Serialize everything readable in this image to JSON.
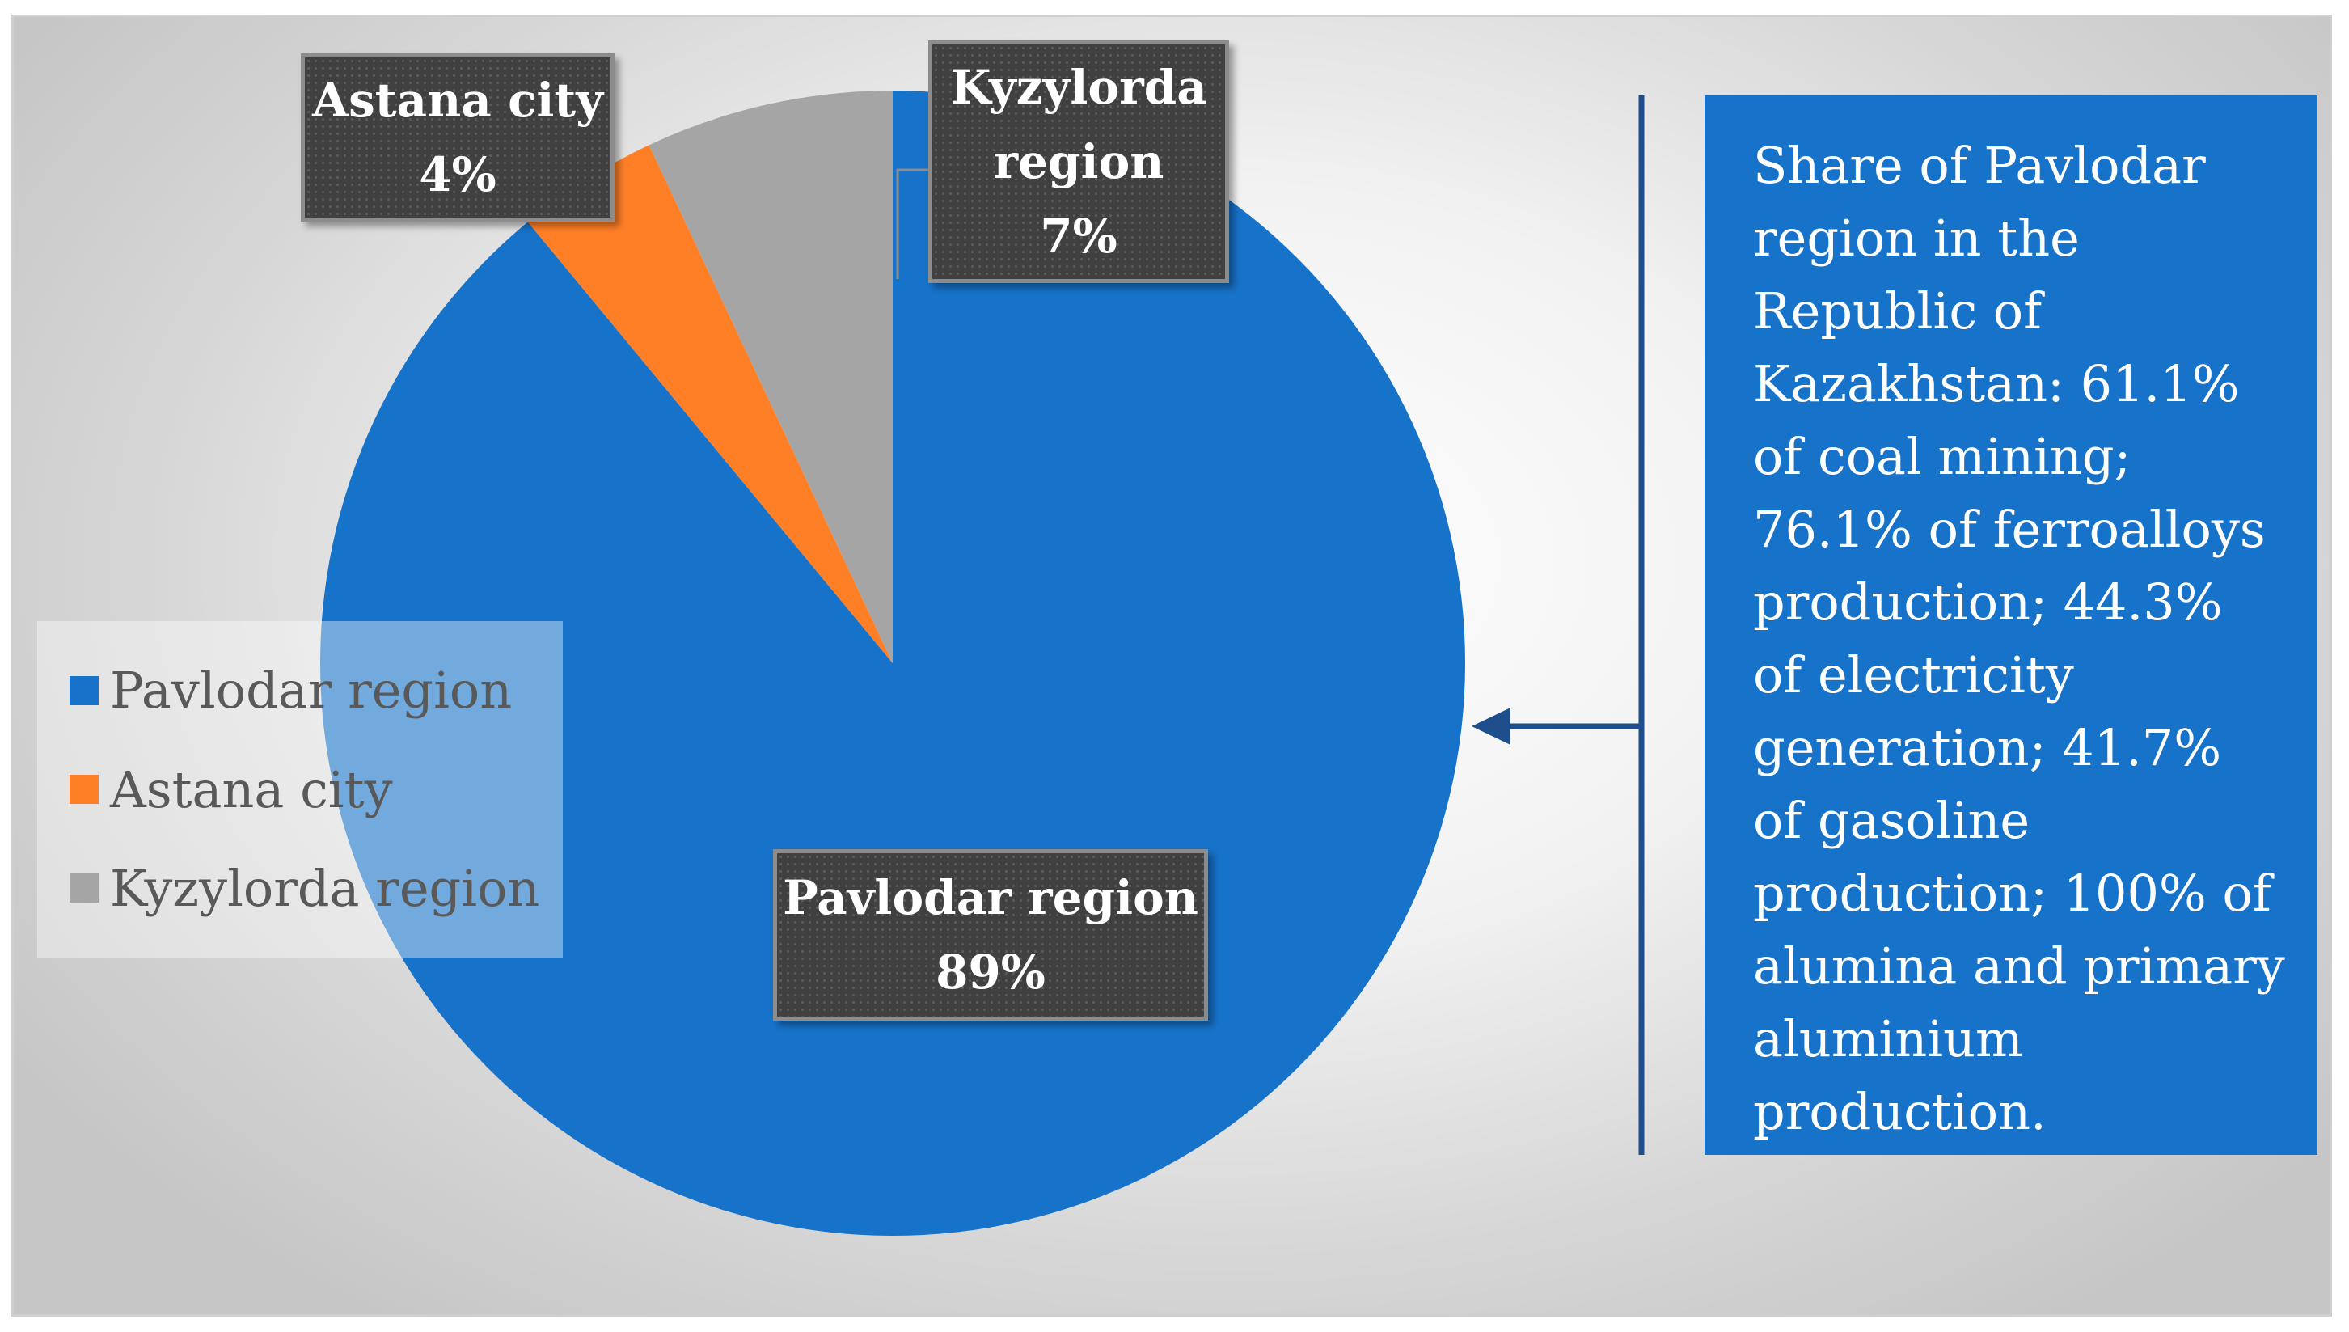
{
  "chart_data": {
    "type": "pie",
    "slices": [
      {
        "name": "Pavlodar region",
        "value": 89,
        "label": "89%",
        "color": "#1772c9"
      },
      {
        "name": "Astana city",
        "value": 4,
        "label": "4%",
        "color": "#ff7f27"
      },
      {
        "name": "Kyzylorda region",
        "value": 7,
        "label": "7%",
        "color": "#a5a5a5"
      }
    ],
    "legend": {
      "placement": "left",
      "items": [
        "Pavlodar region",
        "Astana city",
        "Kyzylorda region"
      ]
    }
  },
  "labels": {
    "pavlodar": {
      "line1": "Pavlodar region",
      "line2": "89%"
    },
    "astana": {
      "line1": "Astana city",
      "line2": "4%"
    },
    "kyzylorda": {
      "line1": "Kyzylorda",
      "line2": "region",
      "line3": "7%"
    }
  },
  "info_box": {
    "text": "Share of Pavlodar region in the Republic of Kazakhstan: 61.1% of coal mining; 76.1% of ferroalloys production; 44.3% of electricity generation; 41.7% of gasoline production; 100% of alumina and primary aluminium production."
  },
  "colors": {
    "pavlodar": "#1772c9",
    "astana": "#ff7f27",
    "kyzylorda": "#a5a5a5",
    "arrow": "#1f4e8c"
  }
}
